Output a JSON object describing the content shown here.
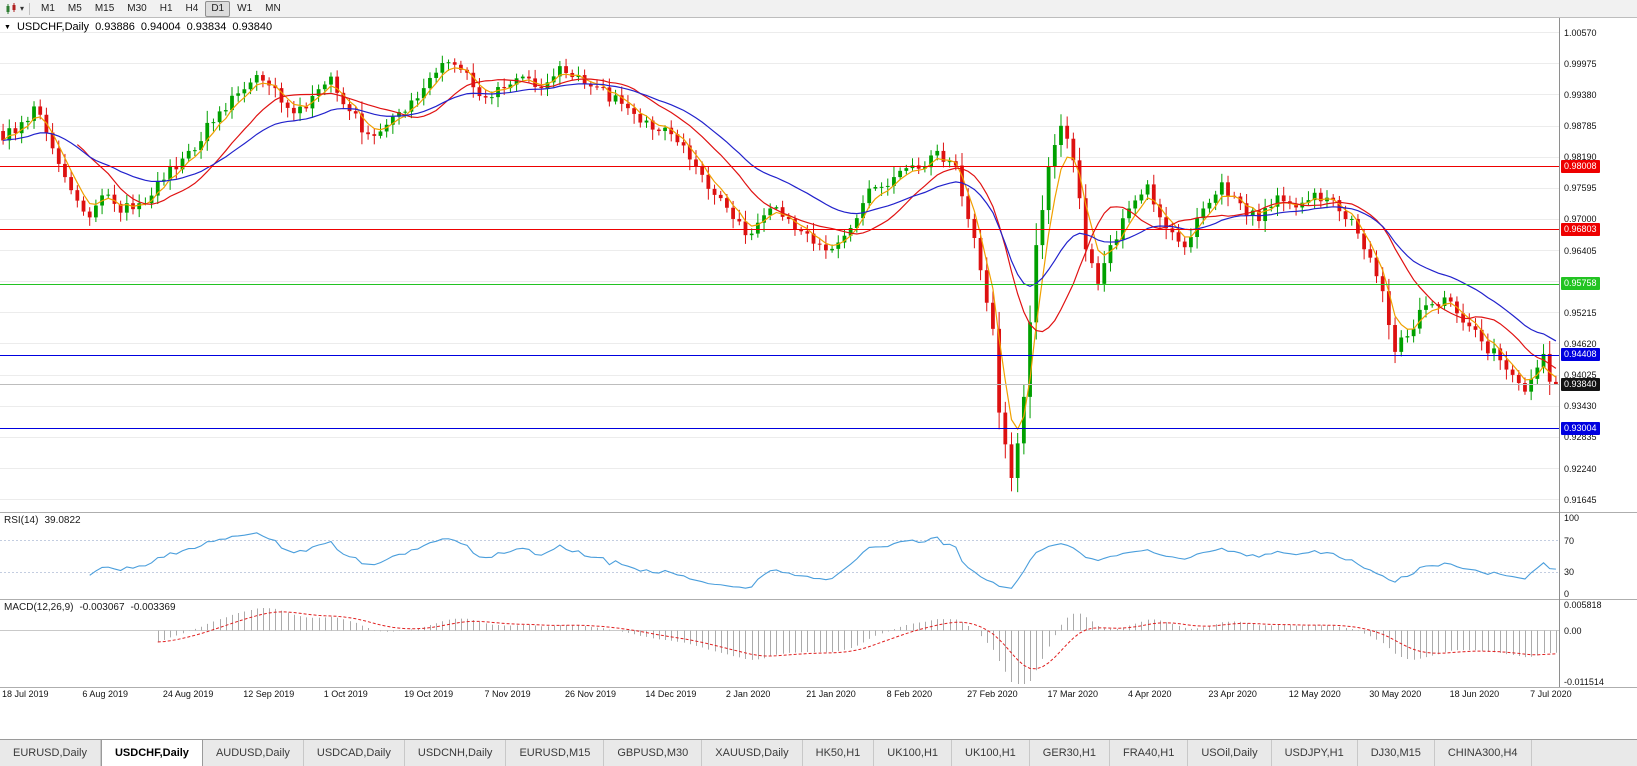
{
  "toolbar": {
    "chart_style_icon": "candlestick-icon",
    "timeframes": [
      "M1",
      "M5",
      "M15",
      "M30",
      "H1",
      "H4",
      "D1",
      "W1",
      "MN"
    ],
    "active_timeframe": "D1"
  },
  "chart_header": {
    "symbol": "USDCHF,Daily",
    "open": "0.93886",
    "high": "0.94004",
    "low": "0.93834",
    "close": "0.93840"
  },
  "price_axis": {
    "labels": [
      "1.00570",
      "0.99975",
      "0.99380",
      "0.98785",
      "0.98190",
      "0.97595",
      "0.97000",
      "0.96405",
      "0.95810",
      "0.95215",
      "0.94620",
      "0.94025",
      "0.93430",
      "0.92835",
      "0.92240",
      "0.91645"
    ]
  },
  "current_price": {
    "label": "0.93840",
    "bg": "#141414"
  },
  "rsi": {
    "name": "RSI(14)",
    "value": "39.0822",
    "period": 14,
    "levels": [
      70,
      30
    ],
    "axis_labels": [
      "100",
      "70",
      "30",
      "0"
    ],
    "color": "#4a9edc"
  },
  "macd": {
    "name": "MACD(12,26,9)",
    "value_main": "-0.003067",
    "value_signal": "-0.003369",
    "fast": 12,
    "slow": 26,
    "signal": 9,
    "axis_labels": [
      "0.005818",
      "0.00",
      "-0.011514"
    ],
    "histogram_color": "#ababab",
    "signal_color": "#e02020"
  },
  "tabs": {
    "items": [
      "EURUSD,Daily",
      "USDCHF,Daily",
      "AUDUSD,Daily",
      "USDCAD,Daily",
      "USDCNH,Daily",
      "EURUSD,M15",
      "GBPUSD,M30",
      "XAUUSD,Daily",
      "HK50,H1",
      "UK100,H1",
      "UK100,H1",
      "GER30,H1",
      "FRA40,H1",
      "USOil,Daily",
      "USDJPY,H1",
      "DJ30,M15",
      "CHINA300,H4"
    ],
    "active_index": 1
  },
  "chart_data": {
    "type": "candlestick",
    "symbol": "USDCHF",
    "timeframe": "Daily",
    "ohlc_last": {
      "open": 0.93886,
      "high": 0.94004,
      "low": 0.93834,
      "close": 0.9384
    },
    "price_range": {
      "min": 0.914,
      "max": 1.0084
    },
    "num_candles": 252,
    "colors": {
      "up": "#00a000",
      "down": "#dd1111"
    },
    "levels": [
      {
        "value": 0.98008,
        "label": "0.98008",
        "color": "#ee0000"
      },
      {
        "value": 0.96803,
        "label": "0.96803",
        "color": "#ee0000"
      },
      {
        "value": 0.95758,
        "label": "0.95758",
        "color": "#22c322"
      },
      {
        "value": 0.94408,
        "label": "0.94408",
        "color": "#0000e0"
      },
      {
        "value": 0.93004,
        "label": "0.93004",
        "color": "#0000e0"
      }
    ],
    "overlays": [
      {
        "name": "fast-ma",
        "type": "ema",
        "period": 4,
        "color": "#f0a000"
      },
      {
        "name": "mid-ma",
        "type": "sma",
        "period": 13,
        "color": "#e01212"
      },
      {
        "name": "slow-ma",
        "type": "ema",
        "period": 26,
        "color": "#2222cc"
      }
    ],
    "close_waypoints": [
      [
        0,
        0.985
      ],
      [
        3,
        0.9885
      ],
      [
        5,
        0.9915
      ],
      [
        8,
        0.9835
      ],
      [
        11,
        0.9755
      ],
      [
        14,
        0.9703
      ],
      [
        16,
        0.9745
      ],
      [
        19,
        0.9712
      ],
      [
        22,
        0.973
      ],
      [
        26,
        0.9775
      ],
      [
        30,
        0.983
      ],
      [
        34,
        0.9885
      ],
      [
        38,
        0.994
      ],
      [
        41,
        0.9975
      ],
      [
        44,
        0.995
      ],
      [
        47,
        0.9902
      ],
      [
        50,
        0.9935
      ],
      [
        53,
        0.9972
      ],
      [
        56,
        0.9906
      ],
      [
        59,
        0.9862
      ],
      [
        62,
        0.988
      ],
      [
        65,
        0.9905
      ],
      [
        68,
        0.995
      ],
      [
        71,
        0.9998
      ],
      [
        74,
        0.9985
      ],
      [
        78,
        0.9932
      ],
      [
        81,
        0.995
      ],
      [
        84,
        0.9972
      ],
      [
        87,
        0.995
      ],
      [
        90,
        0.9992
      ],
      [
        93,
        0.9975
      ],
      [
        96,
        0.9952
      ],
      [
        100,
        0.992
      ],
      [
        104,
        0.9888
      ],
      [
        108,
        0.9862
      ],
      [
        112,
        0.98
      ],
      [
        115,
        0.9746
      ],
      [
        118,
        0.97
      ],
      [
        121,
        0.9672
      ],
      [
        124,
        0.972
      ],
      [
        127,
        0.97
      ],
      [
        130,
        0.9672
      ],
      [
        133,
        0.964
      ],
      [
        136,
        0.9668
      ],
      [
        140,
        0.9758
      ],
      [
        144,
        0.978
      ],
      [
        148,
        0.9796
      ],
      [
        151,
        0.983
      ],
      [
        154,
        0.9802
      ],
      [
        156,
        0.97
      ],
      [
        158,
        0.9602
      ],
      [
        160,
        0.949
      ],
      [
        161,
        0.933
      ],
      [
        163,
        0.9205
      ],
      [
        165,
        0.936
      ],
      [
        167,
        0.965
      ],
      [
        169,
        0.98
      ],
      [
        171,
        0.9878
      ],
      [
        173,
        0.9812
      ],
      [
        175,
        0.9642
      ],
      [
        177,
        0.9576
      ],
      [
        179,
        0.965
      ],
      [
        182,
        0.972
      ],
      [
        185,
        0.9766
      ],
      [
        188,
        0.9682
      ],
      [
        191,
        0.9646
      ],
      [
        194,
        0.972
      ],
      [
        197,
        0.977
      ],
      [
        200,
        0.973
      ],
      [
        203,
        0.9696
      ],
      [
        206,
        0.9745
      ],
      [
        209,
        0.9722
      ],
      [
        212,
        0.975
      ],
      [
        215,
        0.9736
      ],
      [
        218,
        0.97
      ],
      [
        221,
        0.9626
      ],
      [
        223,
        0.9562
      ],
      [
        225,
        0.9446
      ],
      [
        227,
        0.9476
      ],
      [
        230,
        0.9535
      ],
      [
        233,
        0.955
      ],
      [
        236,
        0.9502
      ],
      [
        239,
        0.9466
      ],
      [
        242,
        0.943
      ],
      [
        244,
        0.9402
      ],
      [
        246,
        0.937
      ],
      [
        248,
        0.9416
      ],
      [
        249,
        0.9442
      ],
      [
        250,
        0.9389
      ],
      [
        251,
        0.9384
      ]
    ],
    "date_ticks": [
      [
        0,
        "18 Jul 2019"
      ],
      [
        13,
        "6 Aug 2019"
      ],
      [
        26,
        "24 Aug 2019"
      ],
      [
        39,
        "12 Sep 2019"
      ],
      [
        52,
        "1 Oct 2019"
      ],
      [
        65,
        "19 Oct 2019"
      ],
      [
        78,
        "7 Nov 2019"
      ],
      [
        91,
        "26 Nov 2019"
      ],
      [
        104,
        "14 Dec 2019"
      ],
      [
        117,
        "2 Jan 2020"
      ],
      [
        130,
        "21 Jan 2020"
      ],
      [
        143,
        "8 Feb 2020"
      ],
      [
        156,
        "27 Feb 2020"
      ],
      [
        169,
        "17 Mar 2020"
      ],
      [
        182,
        "4 Apr 2020"
      ],
      [
        195,
        "23 Apr 2020"
      ],
      [
        208,
        "12 May 2020"
      ],
      [
        221,
        "30 May 2020"
      ],
      [
        234,
        "18 Jun 2020"
      ],
      [
        247,
        "7 Jul 2020"
      ]
    ],
    "indicators": [
      {
        "type": "RSI",
        "period": 14,
        "current": 39.0822
      },
      {
        "type": "MACD",
        "fast": 12,
        "slow": 26,
        "signal": 9,
        "current_main": -0.003067,
        "current_signal": -0.003369
      }
    ]
  }
}
